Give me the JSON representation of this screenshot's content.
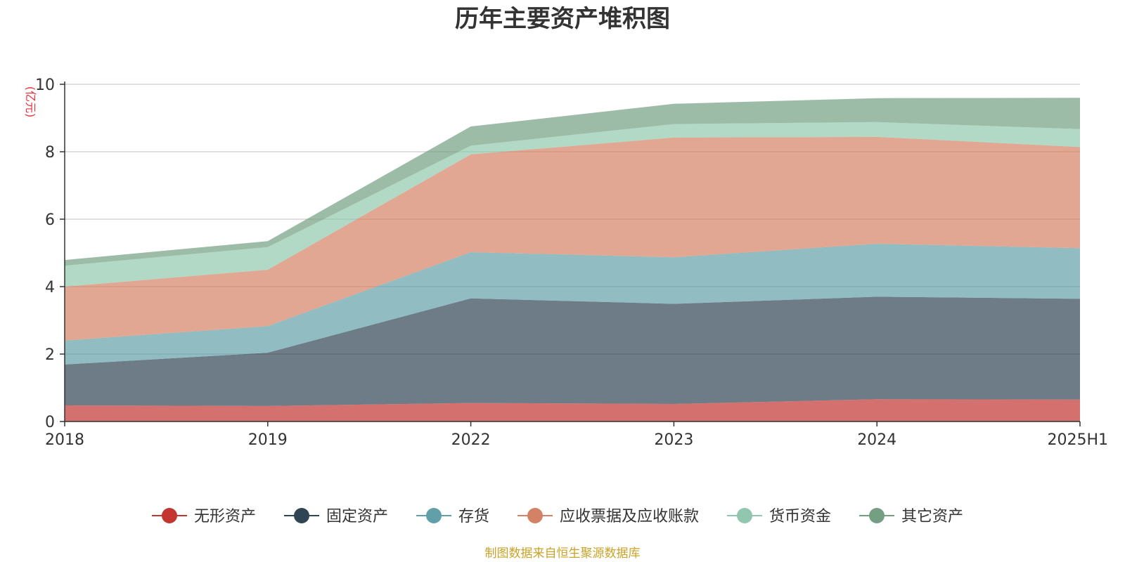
{
  "chart_data": {
    "type": "area",
    "stacked": true,
    "title": "历年主要资产堆积图",
    "ylabel": "(亿元)",
    "xlabel": "",
    "ylim": [
      0,
      10
    ],
    "yticks": [
      0,
      2,
      4,
      6,
      8,
      10
    ],
    "categories": [
      "2018",
      "2019",
      "2022",
      "2023",
      "2024",
      "2025H1"
    ],
    "series": [
      {
        "name": "无形资产",
        "color": "#c23531",
        "values": [
          0.48,
          0.46,
          0.55,
          0.52,
          0.66,
          0.65
        ]
      },
      {
        "name": "固定资产",
        "color": "#2f4554",
        "values": [
          1.21,
          1.58,
          3.1,
          2.97,
          3.04,
          2.99
        ]
      },
      {
        "name": "存货",
        "color": "#61a0a8",
        "values": [
          0.71,
          0.79,
          1.37,
          1.38,
          1.57,
          1.5
        ]
      },
      {
        "name": "应收票据及应收账款",
        "color": "#d48265",
        "values": [
          1.6,
          1.67,
          2.9,
          3.55,
          3.17,
          3.0
        ]
      },
      {
        "name": "货币资金",
        "color": "#91c7ae",
        "values": [
          0.62,
          0.67,
          0.26,
          0.4,
          0.44,
          0.53
        ]
      },
      {
        "name": "其它资产",
        "color": "#749f83",
        "values": [
          0.17,
          0.18,
          0.57,
          0.6,
          0.71,
          0.93
        ]
      }
    ],
    "legend_position": "bottom",
    "grid": true
  },
  "footer": {
    "source": "制图数据来自恒生聚源数据库"
  }
}
